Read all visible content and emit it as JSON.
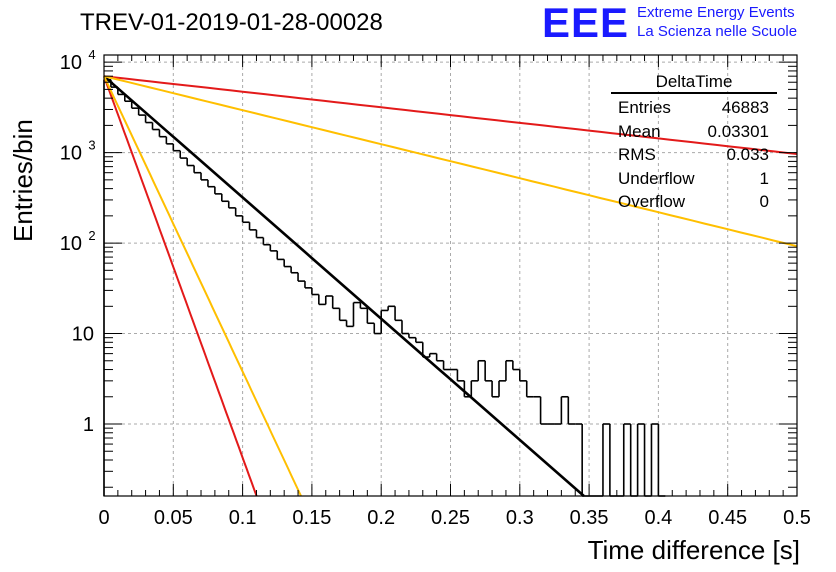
{
  "title": "TREV-01-2019-01-28-00028",
  "logo": {
    "mark": "EEE",
    "line1": "Extreme Energy Events",
    "line2": "La Scienza nelle Scuole",
    "color": "#1a1aff"
  },
  "stats": {
    "title": "DeltaTime",
    "rows": [
      {
        "label": "Entries",
        "value": "46883"
      },
      {
        "label": "Mean",
        "value": "0.03301"
      },
      {
        "label": "RMS",
        "value": "0.033"
      },
      {
        "label": "Underflow",
        "value": "1"
      },
      {
        "label": "Overflow",
        "value": "0"
      }
    ]
  },
  "chart_data": {
    "type": "line",
    "title": "TREV-01-2019-01-28-00028",
    "xlabel": "Time difference [s]",
    "ylabel": "Entries/bin",
    "xlim": [
      0,
      0.5
    ],
    "ylim": [
      0.16,
      12000
    ],
    "yscale": "log",
    "grid": true,
    "xticks": [
      "0",
      "0.05",
      "0.1",
      "0.15",
      "0.2",
      "0.25",
      "0.3",
      "0.35",
      "0.4",
      "0.45",
      "0.5"
    ],
    "yticks": [
      {
        "value": 1,
        "label": "1"
      },
      {
        "value": 10,
        "label": "10"
      },
      {
        "value": 100,
        "label": "10",
        "exp": "2"
      },
      {
        "value": 1000,
        "label": "10",
        "exp": "3"
      },
      {
        "value": 10000,
        "label": "10",
        "exp": "4"
      }
    ],
    "histogram": {
      "color": "#000000",
      "bin_width": 0.005,
      "edges_start": 0,
      "values": [
        6400,
        5300,
        4400,
        3700,
        3100,
        2600,
        2150,
        1800,
        1500,
        1250,
        1050,
        870,
        720,
        600,
        500,
        420,
        350,
        290,
        245,
        200,
        170,
        140,
        115,
        96,
        82,
        66,
        55,
        47,
        38,
        32,
        27,
        21,
        26,
        19,
        14,
        12,
        22,
        19,
        13,
        10,
        18,
        20,
        14,
        10,
        9,
        8,
        5.5,
        6,
        5,
        4,
        4,
        3,
        2,
        3,
        5,
        3,
        2,
        3,
        5,
        4,
        3,
        2,
        2,
        1,
        1,
        1,
        2,
        1,
        1,
        0,
        0,
        0,
        1,
        0,
        0,
        1,
        0,
        1,
        0,
        1,
        0
      ]
    },
    "series": [
      {
        "color": "#000000",
        "N0": 7000,
        "tau": 0.0324,
        "xmax": 0.355
      },
      {
        "color": "#e31a1a",
        "N0": 7000,
        "tau": 0.2525
      },
      {
        "color": "#ffbf00",
        "N0": 7000,
        "tau": 0.1155
      },
      {
        "color": "#e31a1a",
        "N0": 7000,
        "tau": 0.0103
      },
      {
        "color": "#ffbf00",
        "N0": 7000,
        "tau": 0.0133
      }
    ]
  }
}
